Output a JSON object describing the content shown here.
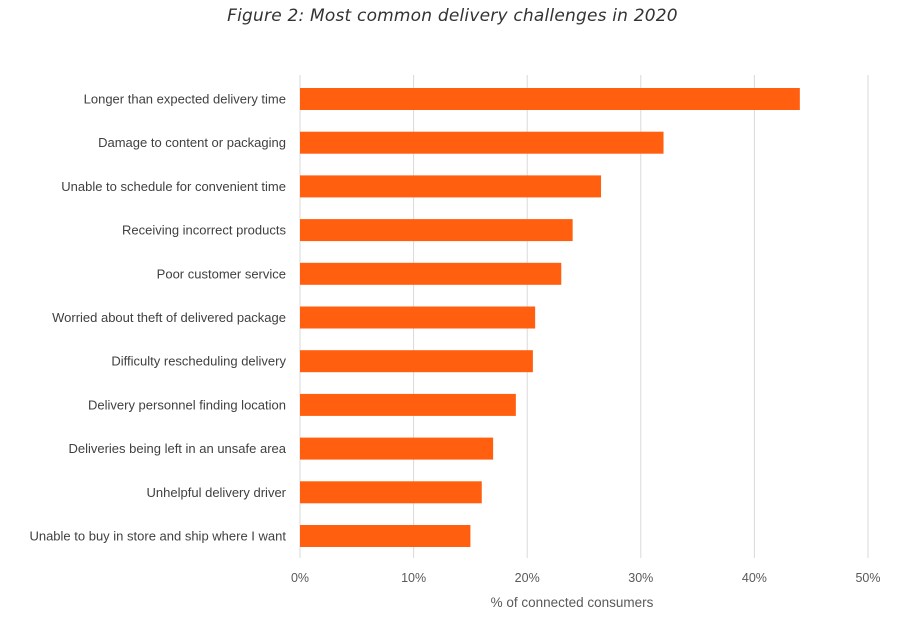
{
  "chart_data": {
    "type": "bar",
    "orientation": "horizontal",
    "title": "Figure 2: Most common delivery challenges in 2020",
    "xlabel": "% of connected consumers",
    "ylabel": "",
    "xlim": [
      0,
      50
    ],
    "x_ticks": [
      0,
      10,
      20,
      30,
      40,
      50
    ],
    "x_tick_labels": [
      "0%",
      "10%",
      "20%",
      "30%",
      "40%",
      "50%"
    ],
    "grid": true,
    "bar_color": "#FF5F0F",
    "grid_color": "#D9D9D9",
    "categories": [
      "Longer than expected delivery time",
      "Damage to content or packaging",
      "Unable to schedule for convenient time",
      "Receiving incorrect products",
      "Poor customer service",
      "Worried about theft of delivered package",
      "Difficulty rescheduling delivery",
      "Delivery personnel finding location",
      "Deliveries being left in an unsafe area",
      "Unhelpful delivery driver",
      "Unable to buy in store and ship where I want"
    ],
    "values": [
      44,
      32,
      26.5,
      24,
      23,
      20.7,
      20.5,
      19,
      17,
      16,
      15
    ]
  }
}
